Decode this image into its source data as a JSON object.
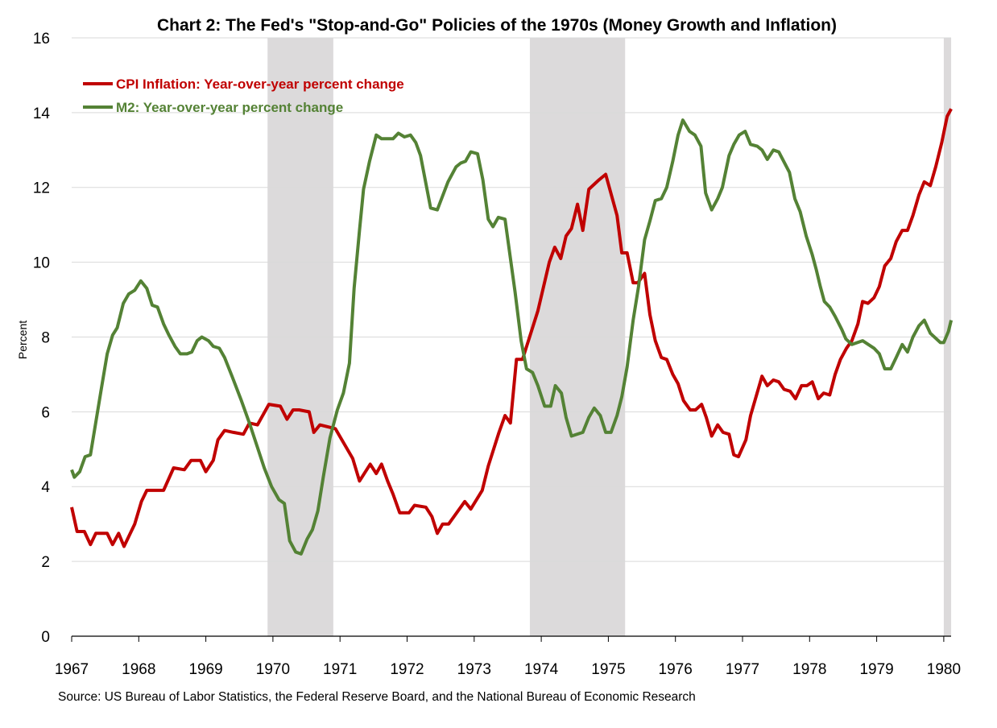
{
  "chart_data": {
    "type": "line",
    "title": "Chart 2: The Fed's \"Stop-and-Go\" Policies of the 1970s (Money Growth and Inflation)",
    "xlabel": "",
    "ylabel": "Percent",
    "xlim": [
      1967,
      1980.11
    ],
    "ylim": [
      0,
      16
    ],
    "x_ticks": [
      "1967",
      "1968",
      "1969",
      "1970",
      "1971",
      "1972",
      "1973",
      "1974",
      "1975",
      "1976",
      "1977",
      "1978",
      "1979",
      "1980"
    ],
    "y_ticks": [
      "0",
      "2",
      "4",
      "6",
      "8",
      "10",
      "12",
      "14",
      "16"
    ],
    "grid": "horizontal",
    "legend_position": "top-left",
    "recessions": [
      [
        1969.92,
        1970.9
      ],
      [
        1973.83,
        1975.25
      ],
      [
        1980.0,
        1980.11
      ]
    ],
    "recession_color": "#dcdadb",
    "series": [
      {
        "name": "CPI Inflation: Year-over-year percent change",
        "color": "#c00000",
        "points": [
          [
            1967.0,
            3.45
          ],
          [
            1967.08,
            2.8
          ],
          [
            1967.19,
            2.8
          ],
          [
            1967.28,
            2.45
          ],
          [
            1967.36,
            2.75
          ],
          [
            1967.53,
            2.75
          ],
          [
            1967.61,
            2.45
          ],
          [
            1967.7,
            2.75
          ],
          [
            1967.78,
            2.4
          ],
          [
            1967.94,
            3.0
          ],
          [
            1968.04,
            3.6
          ],
          [
            1968.12,
            3.9
          ],
          [
            1968.25,
            3.9
          ],
          [
            1968.37,
            3.9
          ],
          [
            1968.52,
            4.5
          ],
          [
            1968.68,
            4.45
          ],
          [
            1968.78,
            4.7
          ],
          [
            1968.92,
            4.7
          ],
          [
            1969.0,
            4.4
          ],
          [
            1969.11,
            4.7
          ],
          [
            1969.18,
            5.25
          ],
          [
            1969.28,
            5.5
          ],
          [
            1969.41,
            5.45
          ],
          [
            1969.56,
            5.4
          ],
          [
            1969.65,
            5.7
          ],
          [
            1969.77,
            5.65
          ],
          [
            1969.94,
            6.2
          ],
          [
            1970.11,
            6.15
          ],
          [
            1970.21,
            5.8
          ],
          [
            1970.3,
            6.05
          ],
          [
            1970.39,
            6.05
          ],
          [
            1970.54,
            6.0
          ],
          [
            1970.61,
            5.45
          ],
          [
            1970.7,
            5.65
          ],
          [
            1970.93,
            5.55
          ],
          [
            1971.19,
            4.75
          ],
          [
            1971.29,
            4.15
          ],
          [
            1971.45,
            4.6
          ],
          [
            1971.54,
            4.35
          ],
          [
            1971.62,
            4.6
          ],
          [
            1971.71,
            4.15
          ],
          [
            1971.79,
            3.8
          ],
          [
            1971.89,
            3.3
          ],
          [
            1972.03,
            3.3
          ],
          [
            1972.11,
            3.5
          ],
          [
            1972.28,
            3.45
          ],
          [
            1972.37,
            3.2
          ],
          [
            1972.45,
            2.75
          ],
          [
            1972.53,
            3.0
          ],
          [
            1972.62,
            3.0
          ],
          [
            1972.86,
            3.6
          ],
          [
            1972.95,
            3.4
          ],
          [
            1973.12,
            3.9
          ],
          [
            1973.21,
            4.55
          ],
          [
            1973.37,
            5.45
          ],
          [
            1973.46,
            5.9
          ],
          [
            1973.54,
            5.7
          ],
          [
            1973.63,
            7.4
          ],
          [
            1973.72,
            7.4
          ],
          [
            1973.95,
            8.7
          ],
          [
            1974.12,
            10.0
          ],
          [
            1974.2,
            10.4
          ],
          [
            1974.29,
            10.1
          ],
          [
            1974.37,
            10.7
          ],
          [
            1974.45,
            10.9
          ],
          [
            1974.54,
            11.55
          ],
          [
            1974.62,
            10.85
          ],
          [
            1974.71,
            11.95
          ],
          [
            1974.86,
            12.2
          ],
          [
            1974.96,
            12.35
          ],
          [
            1975.13,
            11.25
          ],
          [
            1975.2,
            10.25
          ],
          [
            1975.28,
            10.25
          ],
          [
            1975.37,
            9.45
          ],
          [
            1975.44,
            9.45
          ],
          [
            1975.54,
            9.7
          ],
          [
            1975.62,
            8.6
          ],
          [
            1975.7,
            7.9
          ],
          [
            1975.79,
            7.45
          ],
          [
            1975.87,
            7.4
          ],
          [
            1975.96,
            7.0
          ],
          [
            1976.04,
            6.75
          ],
          [
            1976.12,
            6.3
          ],
          [
            1976.22,
            6.05
          ],
          [
            1976.3,
            6.05
          ],
          [
            1976.39,
            6.2
          ],
          [
            1976.46,
            5.85
          ],
          [
            1976.54,
            5.35
          ],
          [
            1976.63,
            5.65
          ],
          [
            1976.71,
            5.45
          ],
          [
            1976.8,
            5.4
          ],
          [
            1976.87,
            4.85
          ],
          [
            1976.94,
            4.8
          ],
          [
            1977.05,
            5.25
          ],
          [
            1977.12,
            5.9
          ],
          [
            1977.29,
            6.95
          ],
          [
            1977.37,
            6.7
          ],
          [
            1977.46,
            6.85
          ],
          [
            1977.54,
            6.8
          ],
          [
            1977.62,
            6.6
          ],
          [
            1977.71,
            6.55
          ],
          [
            1977.79,
            6.35
          ],
          [
            1977.88,
            6.7
          ],
          [
            1977.96,
            6.7
          ],
          [
            1978.04,
            6.8
          ],
          [
            1978.13,
            6.35
          ],
          [
            1978.21,
            6.5
          ],
          [
            1978.3,
            6.45
          ],
          [
            1978.38,
            7.0
          ],
          [
            1978.46,
            7.4
          ],
          [
            1978.55,
            7.7
          ],
          [
            1978.63,
            7.9
          ],
          [
            1978.72,
            8.35
          ],
          [
            1978.79,
            8.95
          ],
          [
            1978.87,
            8.9
          ],
          [
            1978.96,
            9.05
          ],
          [
            1979.04,
            9.35
          ],
          [
            1979.12,
            9.9
          ],
          [
            1979.21,
            10.1
          ],
          [
            1979.29,
            10.55
          ],
          [
            1979.38,
            10.85
          ],
          [
            1979.46,
            10.85
          ],
          [
            1979.54,
            11.25
          ],
          [
            1979.63,
            11.8
          ],
          [
            1979.71,
            12.15
          ],
          [
            1979.8,
            12.05
          ],
          [
            1979.88,
            12.55
          ],
          [
            1979.97,
            13.2
          ],
          [
            1980.05,
            13.9
          ],
          [
            1980.11,
            14.1
          ]
        ]
      },
      {
        "name": "M2: Year-over-year percent change",
        "color": "#548235",
        "points": [
          [
            1967.0,
            4.45
          ],
          [
            1967.04,
            4.25
          ],
          [
            1967.12,
            4.4
          ],
          [
            1967.2,
            4.8
          ],
          [
            1967.28,
            4.85
          ],
          [
            1967.44,
            6.6
          ],
          [
            1967.53,
            7.55
          ],
          [
            1967.61,
            8.05
          ],
          [
            1967.68,
            8.25
          ],
          [
            1967.77,
            8.9
          ],
          [
            1967.85,
            9.15
          ],
          [
            1967.94,
            9.25
          ],
          [
            1968.03,
            9.5
          ],
          [
            1968.12,
            9.3
          ],
          [
            1968.2,
            8.85
          ],
          [
            1968.28,
            8.8
          ],
          [
            1968.37,
            8.35
          ],
          [
            1968.45,
            8.05
          ],
          [
            1968.54,
            7.75
          ],
          [
            1968.62,
            7.55
          ],
          [
            1968.72,
            7.55
          ],
          [
            1968.79,
            7.6
          ],
          [
            1968.87,
            7.9
          ],
          [
            1968.94,
            8.0
          ],
          [
            1969.04,
            7.9
          ],
          [
            1969.11,
            7.75
          ],
          [
            1969.2,
            7.7
          ],
          [
            1969.28,
            7.45
          ],
          [
            1969.39,
            6.95
          ],
          [
            1969.53,
            6.3
          ],
          [
            1969.65,
            5.7
          ],
          [
            1969.77,
            5.05
          ],
          [
            1969.87,
            4.5
          ],
          [
            1969.98,
            4.0
          ],
          [
            1970.09,
            3.65
          ],
          [
            1970.17,
            3.55
          ],
          [
            1970.25,
            2.55
          ],
          [
            1970.34,
            2.25
          ],
          [
            1970.42,
            2.2
          ],
          [
            1970.51,
            2.6
          ],
          [
            1970.59,
            2.85
          ],
          [
            1970.67,
            3.35
          ],
          [
            1970.75,
            4.25
          ],
          [
            1970.85,
            5.3
          ],
          [
            1970.96,
            6.05
          ],
          [
            1971.05,
            6.5
          ],
          [
            1971.14,
            7.3
          ],
          [
            1971.21,
            9.3
          ],
          [
            1971.29,
            10.85
          ],
          [
            1971.35,
            11.95
          ],
          [
            1971.44,
            12.7
          ],
          [
            1971.54,
            13.4
          ],
          [
            1971.62,
            13.3
          ],
          [
            1971.79,
            13.3
          ],
          [
            1971.87,
            13.45
          ],
          [
            1971.96,
            13.35
          ],
          [
            1972.05,
            13.4
          ],
          [
            1972.13,
            13.2
          ],
          [
            1972.2,
            12.85
          ],
          [
            1972.35,
            11.45
          ],
          [
            1972.45,
            11.4
          ],
          [
            1972.61,
            12.15
          ],
          [
            1972.73,
            12.55
          ],
          [
            1972.8,
            12.65
          ],
          [
            1972.87,
            12.7
          ],
          [
            1972.95,
            12.95
          ],
          [
            1973.05,
            12.9
          ],
          [
            1973.13,
            12.2
          ],
          [
            1973.21,
            11.15
          ],
          [
            1973.28,
            10.95
          ],
          [
            1973.36,
            11.2
          ],
          [
            1973.46,
            11.15
          ],
          [
            1973.61,
            9.2
          ],
          [
            1973.7,
            7.9
          ],
          [
            1973.78,
            7.15
          ],
          [
            1973.87,
            7.05
          ],
          [
            1973.95,
            6.7
          ],
          [
            1974.05,
            6.15
          ],
          [
            1974.14,
            6.15
          ],
          [
            1974.21,
            6.7
          ],
          [
            1974.3,
            6.5
          ],
          [
            1974.37,
            5.85
          ],
          [
            1974.45,
            5.35
          ],
          [
            1974.62,
            5.45
          ],
          [
            1974.71,
            5.85
          ],
          [
            1974.79,
            6.1
          ],
          [
            1974.88,
            5.9
          ],
          [
            1974.96,
            5.45
          ],
          [
            1975.04,
            5.45
          ],
          [
            1975.13,
            5.9
          ],
          [
            1975.2,
            6.4
          ],
          [
            1975.28,
            7.2
          ],
          [
            1975.37,
            8.45
          ],
          [
            1975.45,
            9.35
          ],
          [
            1975.54,
            10.6
          ],
          [
            1975.62,
            11.1
          ],
          [
            1975.7,
            11.65
          ],
          [
            1975.79,
            11.7
          ],
          [
            1975.87,
            12.0
          ],
          [
            1975.96,
            12.7
          ],
          [
            1976.04,
            13.4
          ],
          [
            1976.11,
            13.8
          ],
          [
            1976.21,
            13.5
          ],
          [
            1976.29,
            13.4
          ],
          [
            1976.38,
            13.1
          ],
          [
            1976.45,
            11.85
          ],
          [
            1976.54,
            11.4
          ],
          [
            1976.63,
            11.7
          ],
          [
            1976.7,
            12.0
          ],
          [
            1976.8,
            12.85
          ],
          [
            1976.87,
            13.15
          ],
          [
            1976.95,
            13.4
          ],
          [
            1977.04,
            13.5
          ],
          [
            1977.12,
            13.15
          ],
          [
            1977.22,
            13.1
          ],
          [
            1977.29,
            13.0
          ],
          [
            1977.37,
            12.75
          ],
          [
            1977.46,
            13.0
          ],
          [
            1977.54,
            12.95
          ],
          [
            1977.7,
            12.4
          ],
          [
            1977.78,
            11.7
          ],
          [
            1977.86,
            11.35
          ],
          [
            1977.95,
            10.7
          ],
          [
            1978.04,
            10.2
          ],
          [
            1978.1,
            9.8
          ],
          [
            1978.16,
            9.35
          ],
          [
            1978.22,
            8.95
          ],
          [
            1978.3,
            8.8
          ],
          [
            1978.38,
            8.55
          ],
          [
            1978.48,
            8.2
          ],
          [
            1978.54,
            7.95
          ],
          [
            1978.63,
            7.8
          ],
          [
            1978.79,
            7.9
          ],
          [
            1978.96,
            7.7
          ],
          [
            1979.04,
            7.55
          ],
          [
            1979.12,
            7.15
          ],
          [
            1979.21,
            7.15
          ],
          [
            1979.29,
            7.45
          ],
          [
            1979.38,
            7.8
          ],
          [
            1979.46,
            7.6
          ],
          [
            1979.54,
            8.0
          ],
          [
            1979.63,
            8.3
          ],
          [
            1979.71,
            8.45
          ],
          [
            1979.8,
            8.1
          ],
          [
            1979.95,
            7.85
          ],
          [
            1980.0,
            7.85
          ],
          [
            1980.07,
            8.15
          ],
          [
            1980.11,
            8.45
          ]
        ]
      }
    ],
    "source": "Source: US Bureau of Labor Statistics, the Federal Reserve Board, and the National Bureau of Economic Research"
  }
}
